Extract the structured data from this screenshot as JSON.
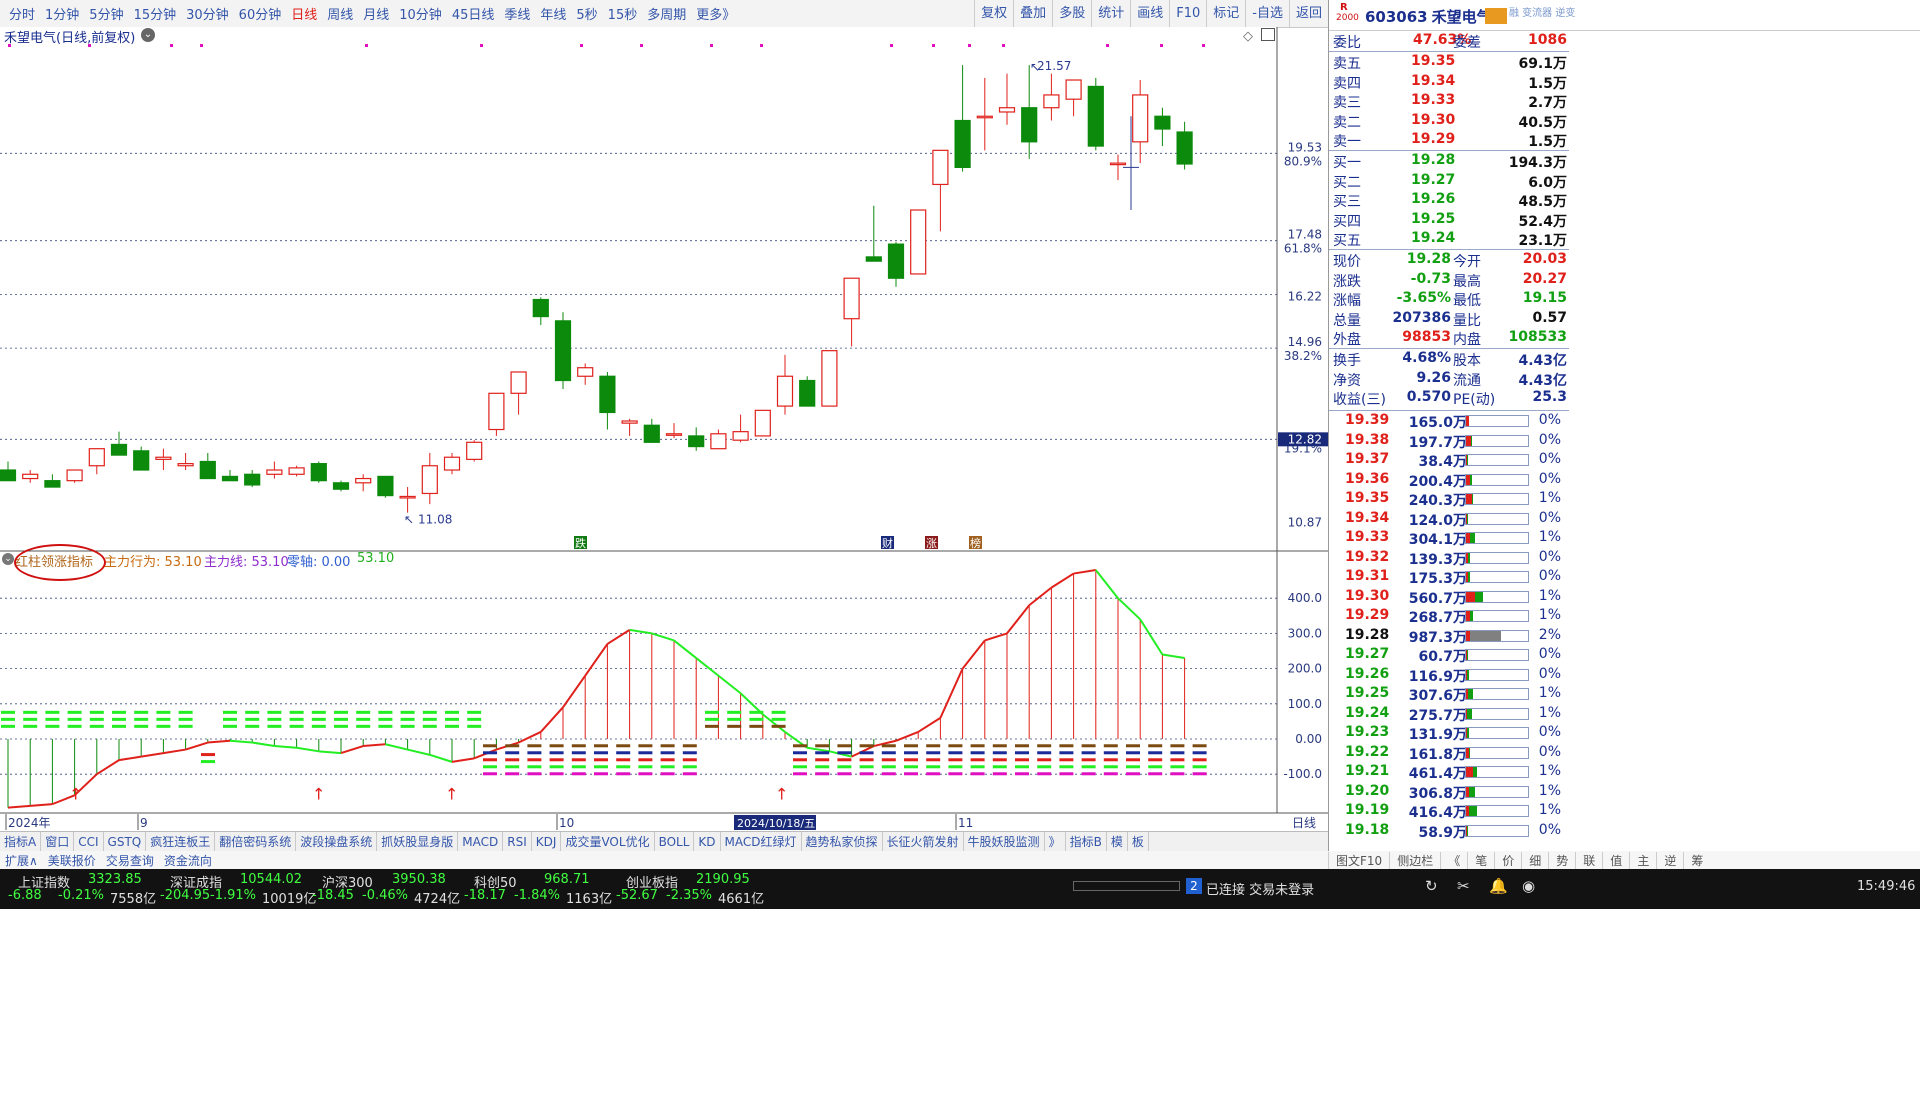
{
  "periods": [
    "分时",
    "1分钟",
    "5分钟",
    "15分钟",
    "30分钟",
    "60分钟",
    "日线",
    "周线",
    "月线",
    "10分钟",
    "45日线",
    "季线",
    "年线",
    "5秒",
    "15秒",
    "多周期",
    "更多》"
  ],
  "active_period": "日线",
  "tools": [
    "复权",
    "叠加",
    "多股",
    "统计",
    "画线",
    "F10",
    "标记",
    "-自选",
    "返回"
  ],
  "chart": {
    "title": "禾望电气(日线,前复权)",
    "price_ticks": [
      "19.53",
      "80.9%",
      "17.48",
      "61.8%",
      "16.22",
      "14.96",
      "38.2%",
      "12.82",
      "19.1%",
      "10.87"
    ],
    "high_label": "21.57",
    "low_label": "11.08",
    "events": [
      "跌",
      "财",
      "涨",
      "榜"
    ],
    "indicator_name": "红柱领涨指标",
    "indicator_values": [
      "主力行为: 53.10",
      "主力线: 53.10",
      "零轴: 0.00",
      "53.10"
    ],
    "indicator_ticks": [
      "400.0",
      "300.0",
      "200.0",
      "100.0",
      "0.00",
      "-100.0"
    ],
    "date_labels": [
      "2024年",
      "9",
      "10",
      "2024/10/18/五",
      "11"
    ],
    "right_label": "日线"
  },
  "quote": {
    "code": "603063",
    "name": "禾望电气",
    "r_badge": "R",
    "small_note": "2000",
    "top_note": "融 变流器 逆变",
    "weibi_label": "委比",
    "weibi": "47.63%",
    "weicha_label": "委差",
    "weicha": "1086",
    "asks": [
      {
        "label": "卖五",
        "price": "19.35",
        "vol": "69.1万"
      },
      {
        "label": "卖四",
        "price": "19.34",
        "vol": "1.5万"
      },
      {
        "label": "卖三",
        "price": "19.33",
        "vol": "2.7万"
      },
      {
        "label": "卖二",
        "price": "19.30",
        "vol": "40.5万"
      },
      {
        "label": "卖一",
        "price": "19.29",
        "vol": "1.5万"
      }
    ],
    "bids": [
      {
        "label": "买一",
        "price": "19.28",
        "vol": "194.3万"
      },
      {
        "label": "买二",
        "price": "19.27",
        "vol": "6.0万"
      },
      {
        "label": "买三",
        "price": "19.26",
        "vol": "48.5万"
      },
      {
        "label": "买四",
        "price": "19.25",
        "vol": "52.4万"
      },
      {
        "label": "买五",
        "price": "19.24",
        "vol": "23.1万"
      }
    ],
    "stats": [
      {
        "l1": "现价",
        "v1": "19.28",
        "l2": "今开",
        "v2": "20.03"
      },
      {
        "l1": "涨跌",
        "v1": "-0.73",
        "l2": "最高",
        "v2": "20.27"
      },
      {
        "l1": "涨幅",
        "v1": "-3.65%",
        "l2": "最低",
        "v2": "19.15"
      },
      {
        "l1": "总量",
        "v1": "207386",
        "l2": "量比",
        "v2": "0.57"
      },
      {
        "l1": "外盘",
        "v1": "98853",
        "l2": "内盘",
        "v2": "108533"
      }
    ],
    "stats2": [
      {
        "l1": "换手",
        "v1": "4.68%",
        "l2": "股本",
        "v2": "4.43亿"
      },
      {
        "l1": "净资",
        "v1": "9.26",
        "l2": "流通",
        "v2": "4.43亿"
      },
      {
        "l1": "收益(三)",
        "v1": "0.570",
        "l2": "PE(动)",
        "v2": "25.3"
      }
    ],
    "ladder": [
      {
        "price": "19.39",
        "vol": "165.0万",
        "pct": "0%",
        "r": 0.05,
        "g": 0.0
      },
      {
        "price": "19.38",
        "vol": "197.7万",
        "pct": "0%",
        "r": 0.08,
        "g": 0.02
      },
      {
        "price": "19.37",
        "vol": "38.4万",
        "pct": "0%",
        "r": 0.01,
        "g": 0.01
      },
      {
        "price": "19.36",
        "vol": "200.4万",
        "pct": "0%",
        "r": 0.07,
        "g": 0.03
      },
      {
        "price": "19.35",
        "vol": "240.3万",
        "pct": "1%",
        "r": 0.1,
        "g": 0.02
      },
      {
        "price": "19.34",
        "vol": "124.0万",
        "pct": "0%",
        "r": 0.02,
        "g": 0.02
      },
      {
        "price": "19.33",
        "vol": "304.1万",
        "pct": "1%",
        "r": 0.06,
        "g": 0.08
      },
      {
        "price": "19.32",
        "vol": "139.3万",
        "pct": "0%",
        "r": 0.04,
        "g": 0.02
      },
      {
        "price": "19.31",
        "vol": "175.3万",
        "pct": "0%",
        "r": 0.03,
        "g": 0.03
      },
      {
        "price": "19.30",
        "vol": "560.7万",
        "pct": "1%",
        "r": 0.15,
        "g": 0.13
      },
      {
        "price": "19.29",
        "vol": "268.7万",
        "pct": "1%",
        "r": 0.06,
        "g": 0.05
      },
      {
        "price": "19.28",
        "vol": "987.3万",
        "pct": "2%",
        "r": 0.07,
        "g": 0.5
      },
      {
        "price": "19.27",
        "vol": "60.7万",
        "pct": "0%",
        "r": 0.01,
        "g": 0.02
      },
      {
        "price": "19.26",
        "vol": "116.9万",
        "pct": "0%",
        "r": 0.02,
        "g": 0.03
      },
      {
        "price": "19.25",
        "vol": "307.6万",
        "pct": "1%",
        "r": 0.03,
        "g": 0.09
      },
      {
        "price": "19.24",
        "vol": "275.7万",
        "pct": "1%",
        "r": 0.02,
        "g": 0.08
      },
      {
        "price": "19.23",
        "vol": "131.9万",
        "pct": "0%",
        "r": 0.02,
        "g": 0.03
      },
      {
        "price": "19.22",
        "vol": "161.8万",
        "pct": "0%",
        "r": 0.05,
        "g": 0.01
      },
      {
        "price": "19.21",
        "vol": "461.4万",
        "pct": "1%",
        "r": 0.12,
        "g": 0.06
      },
      {
        "price": "19.20",
        "vol": "306.8万",
        "pct": "1%",
        "r": 0.05,
        "g": 0.09
      },
      {
        "price": "19.19",
        "vol": "416.4万",
        "pct": "1%",
        "r": 0.05,
        "g": 0.12
      },
      {
        "price": "19.18",
        "vol": "58.9万",
        "pct": "0%",
        "r": 0.01,
        "g": 0.02
      }
    ]
  },
  "indicator_tabs": [
    "指标A",
    "窗口",
    "CCI",
    "GSTQ",
    "疯狂连板王",
    "翻倍密码系统",
    "波段操盘系统",
    "抓妖股显身版",
    "MACD",
    "RSI",
    "KDJ",
    "成交量VOL优化",
    "BOLL",
    "KD",
    "MACD红绿灯",
    "趋势私家侦探",
    "长征火箭发射",
    "牛股妖股监测",
    "》",
    "指标B",
    "模",
    "板"
  ],
  "sub_tabs": [
    "扩展∧",
    "美联报价",
    "交易查询",
    "资金流向"
  ],
  "right_tabs": [
    "图文F10",
    "侧边栏",
    "《",
    "笔",
    "价",
    "细",
    "势",
    "联",
    "值",
    "主",
    "逆",
    "筹"
  ],
  "status": {
    "indices": [
      {
        "name": "上证指数",
        "value": "3323.85",
        "chg": "-6.88",
        "pct": "-0.21%",
        "amt": "7558亿"
      },
      {
        "name": "深证成指",
        "value": "10544.02",
        "chg": "-204.95",
        "pct": "-1.91%",
        "amt": "10019亿"
      },
      {
        "name": "沪深300",
        "value": "3950.38",
        "chg": "-18.45",
        "pct": "-0.46%",
        "amt": "4724亿"
      },
      {
        "name": "科创50",
        "value": "968.71",
        "chg": "-18.17",
        "pct": "-1.84%",
        "amt": "1163亿"
      },
      {
        "name": "创业板指",
        "value": "2190.95",
        "chg": "-52.67",
        "pct": "-2.35%",
        "amt": "4661亿"
      }
    ],
    "connection_badge": "2",
    "connection": "已连接 交易未登录",
    "time": "15:49:46"
  }
}
